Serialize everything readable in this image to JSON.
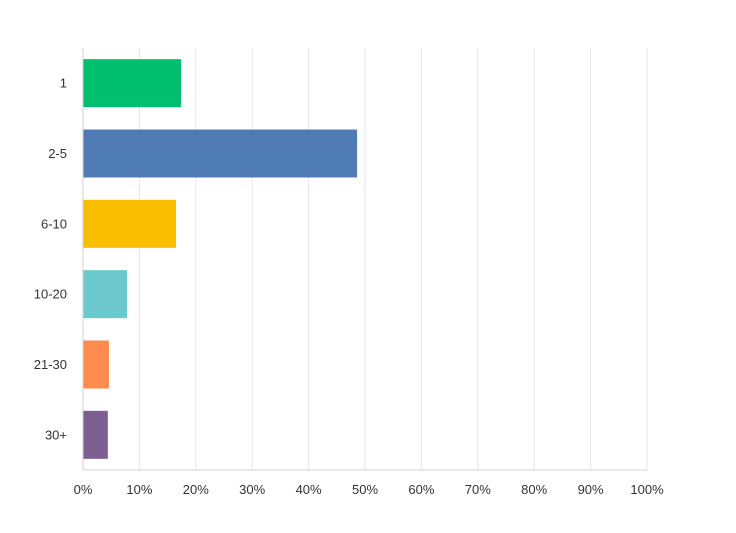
{
  "chart_data": {
    "type": "bar",
    "orientation": "horizontal",
    "categories": [
      "1",
      "2-5",
      "6-10",
      "10-20",
      "21-30",
      "30+"
    ],
    "values": [
      17.4,
      48.6,
      16.5,
      7.8,
      4.6,
      4.4
    ],
    "colors": [
      "#00bf6f",
      "#507cb6",
      "#f9be00",
      "#6bc8cd",
      "#ff8b4f",
      "#7d5e90"
    ],
    "x_ticks": [
      "0%",
      "10%",
      "20%",
      "30%",
      "40%",
      "50%",
      "60%",
      "70%",
      "80%",
      "90%",
      "100%"
    ],
    "xlim": [
      0,
      100
    ],
    "grid": true,
    "legend": "none"
  }
}
